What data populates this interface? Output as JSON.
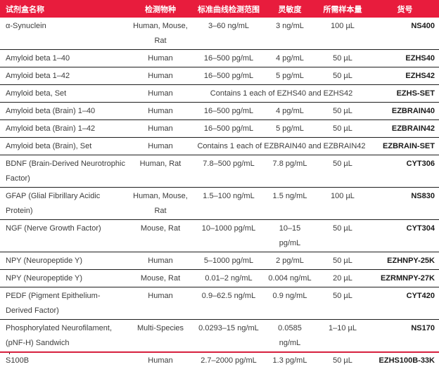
{
  "colors": {
    "header_red": "#e81c3d",
    "bottom_rule_red": "#d6203e",
    "row_separator": "#1d1d1d",
    "body_text": "#3c3c3c"
  },
  "table": {
    "columns": [
      {
        "key": "name",
        "label": "试剂盒名称"
      },
      {
        "key": "species",
        "label": "检测物种"
      },
      {
        "key": "range",
        "label": "标准曲线检测范围"
      },
      {
        "key": "sensitivity",
        "label": "灵敏度"
      },
      {
        "key": "volume",
        "label": "所需样本量"
      },
      {
        "key": "catalog",
        "label": "货号"
      }
    ],
    "rows": [
      {
        "name": "α-Synuclein",
        "species": "Human, Mouse, Rat",
        "range": "3–60 ng/mL",
        "sensitivity": "3 ng/mL",
        "volume": "100 µL",
        "catalog": "NS400"
      },
      {
        "name": "Amyloid beta 1–40",
        "species": "Human",
        "range": "16–500 pg/mL",
        "sensitivity": "4 pg/mL",
        "volume": "50 µL",
        "catalog": "EZHS40"
      },
      {
        "name": "Amyloid beta 1–42",
        "species": "Human",
        "range": "16–500 pg/mL",
        "sensitivity": "5 pg/mL",
        "volume": "50 µL",
        "catalog": "EZHS42"
      },
      {
        "name": "Amyloid beta, Set",
        "species": "Human",
        "span": "Contains 1 each of EZHS40 and EZHS42",
        "catalog": "EZHS-SET"
      },
      {
        "name": "Amyloid beta (Brain) 1–40",
        "species": "Human",
        "range": "16–500 pg/mL",
        "sensitivity": "4 pg/mL",
        "volume": "50 µL",
        "catalog": "EZBRAIN40"
      },
      {
        "name": "Amyloid beta (Brain) 1–42",
        "species": "Human",
        "range": "16–500 pg/mL",
        "sensitivity": "5 pg/mL",
        "volume": "50 µL",
        "catalog": "EZBRAIN42"
      },
      {
        "name": "Amyloid beta (Brain), Set",
        "species": "Human",
        "span": "Contains 1 each of EZBRAIN40 and EZBRAIN42",
        "catalog": "EZBRAIN-SET"
      },
      {
        "name": "BDNF (Brain-Derived Neurotrophic Factor)",
        "species": "Human, Rat",
        "range": "7.8–500 pg/mL",
        "sensitivity": "7.8 pg/mL",
        "volume": "50 µL",
        "catalog": "CYT306"
      },
      {
        "name": "GFAP (Glial Fibrillary Acidic Protein)",
        "species": "Human, Mouse, Rat",
        "range": "1.5–100 ng/mL",
        "sensitivity": "1.5 ng/mL",
        "volume": "100 µL",
        "catalog": "NS830"
      },
      {
        "name": "NGF (Nerve Growth Factor)",
        "species": "Mouse, Rat",
        "range": "10–1000 pg/mL",
        "sensitivity": "10–15 pg/mL",
        "volume": "50 µL",
        "catalog": "CYT304"
      },
      {
        "name": "NPY (Neuropeptide Y)",
        "species": "Human",
        "range": "5–1000 pg/mL",
        "sensitivity": "2 pg/mL",
        "volume": "50 µL",
        "catalog": "EZHNPY-25K"
      },
      {
        "name": "NPY (Neuropeptide Y)",
        "species": "Mouse, Rat",
        "range": "0.01–2 ng/mL",
        "sensitivity": "0.004 ng/mL",
        "volume": "20 µL",
        "catalog": "EZRMNPY-27K"
      },
      {
        "name": "PEDF (Pigment Epithelium-Derived Factor)",
        "species": "Human",
        "range": "0.9–62.5 ng/mL",
        "sensitivity": "0.9 ng/mL",
        "volume": "50 µL",
        "catalog": "CYT420"
      },
      {
        "name": "Phosphorylated Neurofilament, (pNF-H) Sandwich",
        "species": "Multi-Species",
        "range": "0.0293–15 ng/mL",
        "sensitivity": "0.0585 ng/mL",
        "volume": "1–10 µL",
        "catalog": "NS170"
      },
      {
        "name": "S100B",
        "species": "Human",
        "range": "2.7–2000 pg/mL",
        "sensitivity": "1.3 pg/mL",
        "volume": "50 µL",
        "catalog": "EZHS100B-33K"
      }
    ]
  }
}
